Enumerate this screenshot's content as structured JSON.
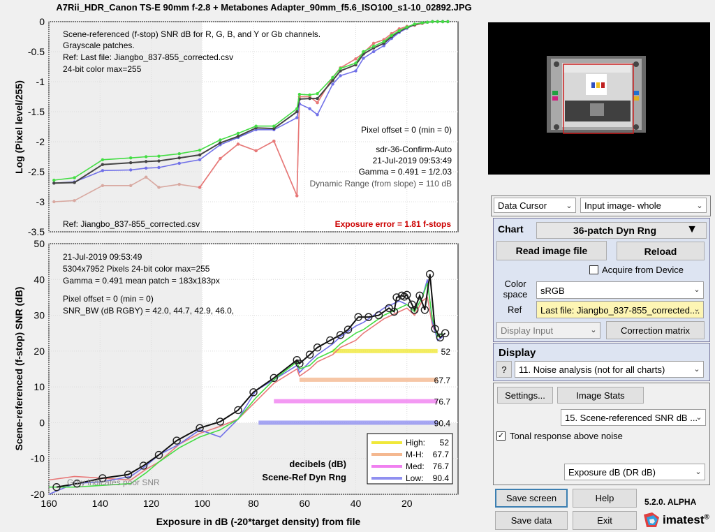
{
  "title": "A7Rii_HDR_Canon TS-E 90mm f-2.8 + Metabones Adapter_90mm_f5.6_ISO100_s1-10_02892.JPG",
  "top_plot": {
    "ylabel": "Log (Pixel level/255)",
    "y_ticks": [
      "0",
      "-0.5",
      "-1",
      "-1.5",
      "-2",
      "-2.5",
      "-3",
      "-3.5"
    ],
    "notes": [
      "Scene-referenced (f-stop) SNR dB for R, G, B, and Y or Gb channels.",
      "Grayscale patches.",
      "Ref: Last file: Jiangbo_837-855_corrected.csv",
      "24-bit color  max=255"
    ],
    "right_notes": [
      "Pixel offset = 0  (min = 0)",
      "sdr-36-Confirm-Auto",
      "21-Jul-2019 09:53:49",
      "Gamma = 0.491 = 1/2.03",
      "Dynamic Range (from slope) = 110 dB"
    ],
    "ref_note": "Ref: Jiangbo_837-855_corrected.csv",
    "exposure_error": "Exposure error = 1.81 f-stops",
    "exposure_error_color": "#cc0000"
  },
  "bottom_plot": {
    "ylabel": "Scene-referenced (f-stop) SNR (dB)",
    "xlabel": "Exposure in dB (-20*target density)   from file",
    "y_ticks": [
      "50",
      "40",
      "30",
      "20",
      "10",
      "0",
      "-10",
      "-20"
    ],
    "x_ticks": [
      "160",
      "140",
      "120",
      "100",
      "80",
      "60",
      "40",
      "20"
    ],
    "notes": [
      "21-Jul-2019 09:53:49",
      "5304x7952 Pixels  24-bit color  max=255",
      "Gamma = 0.491   mean patch = 183x183px",
      "Pixel offset = 0  (min = 0)",
      "SNR_BW (dB RGBY) = 42.0, 44.7, 42.9, 46.0,"
    ],
    "decibels_label": "decibels (dB)",
    "dyn_rng_label": "Scene-Ref Dyn Rng",
    "poor_snr_label": "Gray indicates poor SNR",
    "level_tags": [
      "52",
      "67.7",
      "76.7",
      "90.4"
    ],
    "legend": [
      {
        "name": "High:",
        "value": "52",
        "color": "#f0e83a"
      },
      {
        "name": "M-H:",
        "value": "67.7",
        "color": "#f4b890"
      },
      {
        "name": "Med:",
        "value": "76.7",
        "color": "#f080f0"
      },
      {
        "name": "Low:",
        "value": "90.4",
        "color": "#9090f0"
      }
    ]
  },
  "chart_data": [
    {
      "type": "line",
      "xlim": [
        160,
        0
      ],
      "ylim": [
        -3.5,
        0
      ],
      "series": [
        {
          "color": "#d8a8a0",
          "x": [
            158,
            150,
            139,
            128,
            122,
            117,
            109,
            101,
            93,
            86,
            79,
            72,
            63,
            62,
            58,
            55,
            49,
            46,
            40,
            37,
            33,
            29,
            26,
            23,
            20,
            17,
            14,
            12,
            10,
            8,
            6,
            4
          ],
          "y": [
            -3.0,
            -2.98,
            -2.73,
            -2.73,
            -2.59,
            -2.76,
            -2.71,
            -2.76,
            -2.28,
            -2.04,
            -2.15,
            -1.99,
            -2.9,
            -1.25,
            -1.25,
            -1.35,
            -0.93,
            -0.77,
            -0.62,
            -0.52,
            -0.36,
            -0.3,
            -0.2,
            -0.12,
            -0.08,
            -0.06,
            -0.03,
            -0.01,
            0,
            0,
            0,
            0
          ]
        },
        {
          "color": "#e87878",
          "x": [
            101,
            93,
            86,
            79,
            72,
            63,
            62,
            58,
            55,
            49,
            46,
            40,
            37,
            33,
            29,
            26,
            23,
            20,
            17,
            14
          ],
          "y": [
            -2.76,
            -2.28,
            -2.04,
            -2.15,
            -1.99,
            -2.9,
            -1.25,
            -1.25,
            -1.35,
            -0.93,
            -0.77,
            -0.62,
            -0.52,
            -0.36,
            -0.3,
            -0.2,
            -0.12,
            -0.08,
            -0.06,
            -0.03
          ]
        },
        {
          "color": "#7070e8",
          "x": [
            158,
            150,
            139,
            128,
            122,
            117,
            109,
            101,
            93,
            86,
            79,
            72,
            63,
            62,
            58,
            55,
            49,
            46,
            40,
            37,
            33,
            29,
            26,
            23,
            20,
            17,
            14,
            12,
            10,
            8,
            6,
            4
          ],
          "y": [
            -2.69,
            -2.67,
            -2.48,
            -2.47,
            -2.44,
            -2.43,
            -2.36,
            -2.3,
            -2.05,
            -1.93,
            -1.8,
            -1.8,
            -1.6,
            -1.37,
            -1.45,
            -1.55,
            -1.04,
            -0.9,
            -0.82,
            -0.61,
            -0.5,
            -0.4,
            -0.28,
            -0.18,
            -0.11,
            -0.05,
            -0.02,
            -0.01,
            0,
            0,
            0,
            0
          ]
        },
        {
          "color": "#444444",
          "x": [
            158,
            150,
            139,
            128,
            122,
            117,
            109,
            101,
            93,
            86,
            79,
            72,
            63,
            62,
            58,
            55,
            49,
            46,
            40,
            37,
            33,
            29,
            26,
            23,
            20,
            17,
            14,
            12,
            10,
            8,
            6,
            4
          ],
          "y": [
            -2.69,
            -2.68,
            -2.38,
            -2.35,
            -2.33,
            -2.32,
            -2.27,
            -2.22,
            -2.02,
            -1.91,
            -1.77,
            -1.78,
            -1.5,
            -1.29,
            -1.28,
            -1.28,
            -0.98,
            -0.82,
            -0.72,
            -0.54,
            -0.44,
            -0.36,
            -0.25,
            -0.16,
            -0.1,
            -0.05,
            -0.02,
            -0.01,
            0,
            0,
            0,
            0
          ]
        },
        {
          "color": "#44dd44",
          "x": [
            158,
            150,
            139,
            128,
            122,
            117,
            109,
            101,
            93,
            86,
            79,
            72,
            63,
            62,
            58,
            55,
            49,
            46,
            40,
            37,
            33,
            29,
            26,
            23,
            20,
            17,
            14,
            12,
            10,
            8,
            6,
            4
          ],
          "y": [
            -2.64,
            -2.6,
            -2.3,
            -2.27,
            -2.25,
            -2.24,
            -2.2,
            -2.14,
            -1.97,
            -1.86,
            -1.74,
            -1.74,
            -1.45,
            -1.21,
            -1.22,
            -1.2,
            -0.93,
            -0.78,
            -0.69,
            -0.5,
            -0.41,
            -0.33,
            -0.23,
            -0.15,
            -0.09,
            -0.04,
            -0.02,
            -0.01,
            0,
            0,
            0,
            0
          ]
        }
      ]
    },
    {
      "type": "line",
      "xlim": [
        160,
        0
      ],
      "ylim": [
        -20,
        50
      ],
      "series": [
        {
          "color": "#e87878",
          "x": [
            160,
            150,
            139,
            128,
            122,
            117,
            109,
            101,
            93,
            86,
            79,
            72,
            63,
            62,
            58,
            55,
            49,
            46,
            40,
            37,
            33,
            29,
            26,
            23,
            20,
            17,
            14,
            12,
            10,
            8,
            6
          ],
          "y": [
            -16,
            -15,
            -15.5,
            -16,
            -13,
            -11,
            -6,
            -3,
            -1,
            1,
            6,
            11,
            15,
            13,
            15,
            17,
            19,
            21,
            23,
            25,
            27,
            29,
            30,
            31,
            32,
            30,
            34,
            35,
            27,
            24,
            24
          ]
        },
        {
          "color": "#7070e8",
          "x": [
            160,
            150,
            139,
            128,
            122,
            117,
            109,
            101,
            93,
            86,
            79,
            72,
            63,
            62,
            58,
            55,
            49,
            46,
            40,
            37,
            33,
            29,
            26,
            23,
            20,
            17,
            14,
            12,
            10,
            8,
            6
          ],
          "y": [
            -20,
            -17,
            -16.5,
            -15,
            -12,
            -9,
            -6,
            -2,
            -4,
            1,
            9,
            12,
            16,
            14,
            17,
            19,
            22,
            24,
            27,
            28,
            30,
            32,
            33,
            34,
            33,
            31,
            35,
            40,
            28,
            23,
            24
          ]
        },
        {
          "color": "#44dd44",
          "x": [
            160,
            150,
            139,
            128,
            122,
            117,
            109,
            101,
            93,
            86,
            79,
            72,
            63,
            62,
            58,
            55,
            49,
            46,
            40,
            37,
            33,
            29,
            26,
            23,
            20,
            17,
            14,
            12,
            10,
            8,
            6
          ],
          "y": [
            -18,
            -18,
            -17.5,
            -17,
            -14,
            -11,
            -7,
            -4,
            -2,
            1,
            7,
            12,
            17,
            15,
            16,
            18,
            20,
            22,
            25,
            26,
            28,
            30,
            31,
            32,
            33,
            31,
            35,
            39,
            29,
            24,
            25
          ]
        },
        {
          "color": "#111111",
          "x": [
            157,
            149,
            139,
            129,
            123,
            117,
            110,
            101,
            93,
            86,
            80,
            72,
            63,
            62,
            58,
            55,
            50,
            46,
            43,
            39,
            35,
            31,
            27,
            25,
            24,
            22,
            21,
            20,
            18,
            17,
            15,
            13,
            11,
            9,
            7,
            5
          ],
          "y": [
            -18,
            -17,
            -15.5,
            -14.5,
            -12,
            -9,
            -5,
            -1.5,
            0.3,
            3.5,
            8.5,
            12.5,
            17.5,
            16.5,
            19,
            21,
            23,
            24.5,
            26,
            29.5,
            29.5,
            30,
            32,
            31,
            35,
            35.5,
            35.2,
            35.7,
            33,
            31.5,
            35.5,
            31.5,
            41.5,
            26.2,
            23.8,
            25
          ]
        }
      ]
    }
  ],
  "thumbnail": {
    "label": "test chart image"
  },
  "panel": {
    "data_cursor": "Data Cursor",
    "input_image": "Input image- whole",
    "chart_label": "Chart",
    "chart_value": "36-patch Dyn Rng",
    "read_image": "Read image file",
    "reload": "Reload",
    "acquire": "Acquire from Device",
    "color_space_label": "Color space",
    "color_space": "sRGB",
    "ref_label": "Ref",
    "ref_value": "Last file: Jiangbo_837-855_corrected....",
    "display_input": "Display Input",
    "correction_matrix": "Correction matrix",
    "display_label": "Display",
    "help_q": "?",
    "display_value": "11. Noise analysis (not for all charts)",
    "settings": "Settings...",
    "image_stats": "Image Stats",
    "scene_snr": "15. Scene-referenced SNR dB ...",
    "tonal": "Tonal response above noise",
    "exposure_db": "Exposure dB (DR dB)",
    "save_screen": "Save screen",
    "help": "Help",
    "version": "5.2.0. ALPHA",
    "save_data": "Save data",
    "exit": "Exit",
    "brand": "imatest",
    "reg": "®"
  }
}
